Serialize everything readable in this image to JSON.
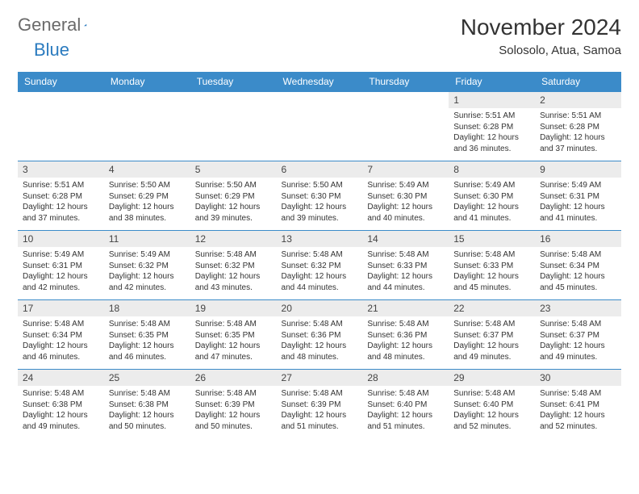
{
  "brand": {
    "part1": "General",
    "part2": "Blue"
  },
  "title": "November 2024",
  "location": "Solosolo, Atua, Samoa",
  "colors": {
    "header_bg": "#3b8bc9",
    "header_text": "#ffffff",
    "day_num_bg": "#ececec",
    "row_border": "#3b8bc9",
    "text": "#333333",
    "logo_gray": "#6a6a6a",
    "logo_blue": "#2b7bbf"
  },
  "dayNames": [
    "Sunday",
    "Monday",
    "Tuesday",
    "Wednesday",
    "Thursday",
    "Friday",
    "Saturday"
  ],
  "weeks": [
    [
      null,
      null,
      null,
      null,
      null,
      {
        "n": "1",
        "sr": "5:51 AM",
        "ss": "6:28 PM",
        "dl": "12 hours and 36 minutes."
      },
      {
        "n": "2",
        "sr": "5:51 AM",
        "ss": "6:28 PM",
        "dl": "12 hours and 37 minutes."
      }
    ],
    [
      {
        "n": "3",
        "sr": "5:51 AM",
        "ss": "6:28 PM",
        "dl": "12 hours and 37 minutes."
      },
      {
        "n": "4",
        "sr": "5:50 AM",
        "ss": "6:29 PM",
        "dl": "12 hours and 38 minutes."
      },
      {
        "n": "5",
        "sr": "5:50 AM",
        "ss": "6:29 PM",
        "dl": "12 hours and 39 minutes."
      },
      {
        "n": "6",
        "sr": "5:50 AM",
        "ss": "6:30 PM",
        "dl": "12 hours and 39 minutes."
      },
      {
        "n": "7",
        "sr": "5:49 AM",
        "ss": "6:30 PM",
        "dl": "12 hours and 40 minutes."
      },
      {
        "n": "8",
        "sr": "5:49 AM",
        "ss": "6:30 PM",
        "dl": "12 hours and 41 minutes."
      },
      {
        "n": "9",
        "sr": "5:49 AM",
        "ss": "6:31 PM",
        "dl": "12 hours and 41 minutes."
      }
    ],
    [
      {
        "n": "10",
        "sr": "5:49 AM",
        "ss": "6:31 PM",
        "dl": "12 hours and 42 minutes."
      },
      {
        "n": "11",
        "sr": "5:49 AM",
        "ss": "6:32 PM",
        "dl": "12 hours and 42 minutes."
      },
      {
        "n": "12",
        "sr": "5:48 AM",
        "ss": "6:32 PM",
        "dl": "12 hours and 43 minutes."
      },
      {
        "n": "13",
        "sr": "5:48 AM",
        "ss": "6:32 PM",
        "dl": "12 hours and 44 minutes."
      },
      {
        "n": "14",
        "sr": "5:48 AM",
        "ss": "6:33 PM",
        "dl": "12 hours and 44 minutes."
      },
      {
        "n": "15",
        "sr": "5:48 AM",
        "ss": "6:33 PM",
        "dl": "12 hours and 45 minutes."
      },
      {
        "n": "16",
        "sr": "5:48 AM",
        "ss": "6:34 PM",
        "dl": "12 hours and 45 minutes."
      }
    ],
    [
      {
        "n": "17",
        "sr": "5:48 AM",
        "ss": "6:34 PM",
        "dl": "12 hours and 46 minutes."
      },
      {
        "n": "18",
        "sr": "5:48 AM",
        "ss": "6:35 PM",
        "dl": "12 hours and 46 minutes."
      },
      {
        "n": "19",
        "sr": "5:48 AM",
        "ss": "6:35 PM",
        "dl": "12 hours and 47 minutes."
      },
      {
        "n": "20",
        "sr": "5:48 AM",
        "ss": "6:36 PM",
        "dl": "12 hours and 48 minutes."
      },
      {
        "n": "21",
        "sr": "5:48 AM",
        "ss": "6:36 PM",
        "dl": "12 hours and 48 minutes."
      },
      {
        "n": "22",
        "sr": "5:48 AM",
        "ss": "6:37 PM",
        "dl": "12 hours and 49 minutes."
      },
      {
        "n": "23",
        "sr": "5:48 AM",
        "ss": "6:37 PM",
        "dl": "12 hours and 49 minutes."
      }
    ],
    [
      {
        "n": "24",
        "sr": "5:48 AM",
        "ss": "6:38 PM",
        "dl": "12 hours and 49 minutes."
      },
      {
        "n": "25",
        "sr": "5:48 AM",
        "ss": "6:38 PM",
        "dl": "12 hours and 50 minutes."
      },
      {
        "n": "26",
        "sr": "5:48 AM",
        "ss": "6:39 PM",
        "dl": "12 hours and 50 minutes."
      },
      {
        "n": "27",
        "sr": "5:48 AM",
        "ss": "6:39 PM",
        "dl": "12 hours and 51 minutes."
      },
      {
        "n": "28",
        "sr": "5:48 AM",
        "ss": "6:40 PM",
        "dl": "12 hours and 51 minutes."
      },
      {
        "n": "29",
        "sr": "5:48 AM",
        "ss": "6:40 PM",
        "dl": "12 hours and 52 minutes."
      },
      {
        "n": "30",
        "sr": "5:48 AM",
        "ss": "6:41 PM",
        "dl": "12 hours and 52 minutes."
      }
    ]
  ],
  "labels": {
    "sunrise": "Sunrise:",
    "sunset": "Sunset:",
    "daylight": "Daylight:"
  }
}
